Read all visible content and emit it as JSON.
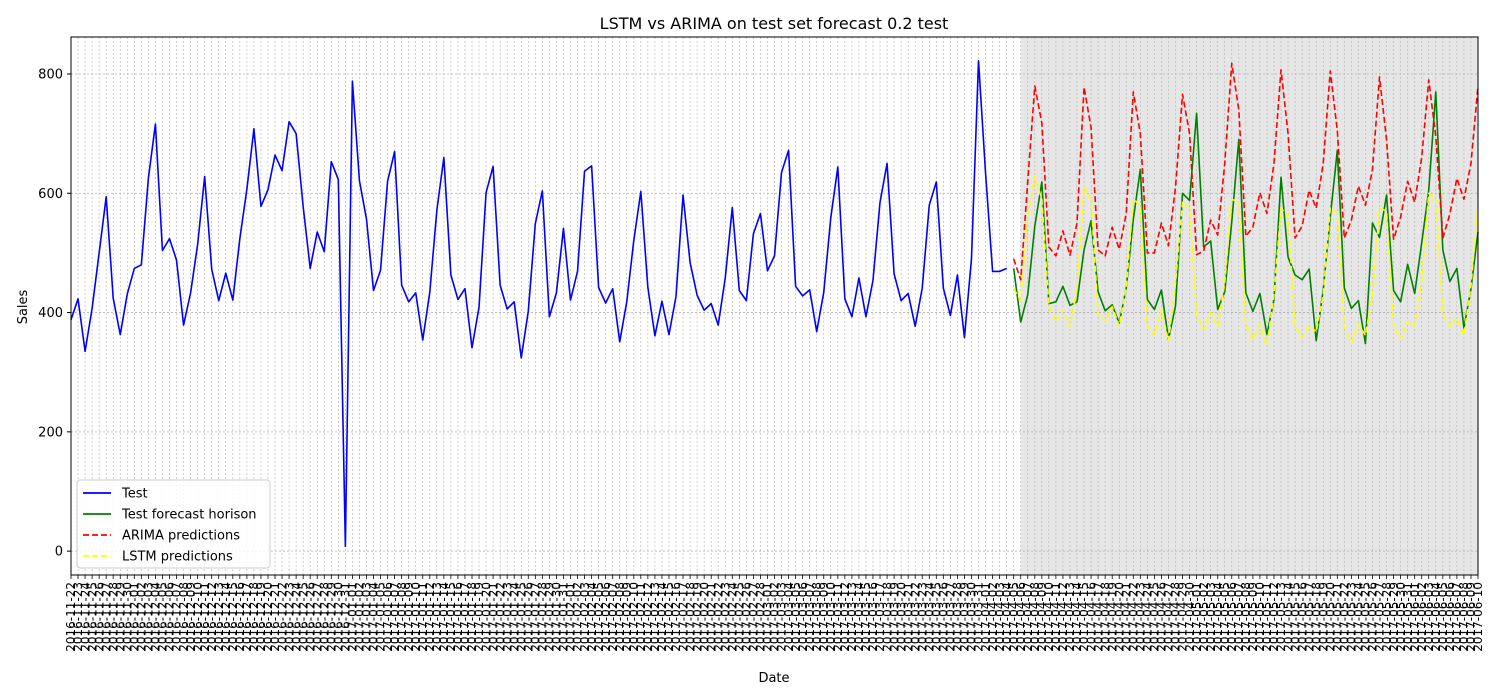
{
  "chart_data": {
    "type": "line",
    "title": "LSTM vs ARIMA on test set forecast 0.2 test",
    "xlabel": "Date",
    "ylabel": "Sales",
    "ylim": [
      -40,
      862
    ],
    "yticks": [
      0,
      200,
      400,
      600,
      800
    ],
    "grid": true,
    "legend_position": "lower-left",
    "x_start": "2016-11-22",
    "x_end": "2017-06-10",
    "shaded_region": {
      "from": "2017-04-06",
      "to": "2017-06-10",
      "color": "#e6e6e6"
    },
    "series": [
      {
        "name": "Test",
        "color": "#0000ff",
        "style": "solid",
        "start": "2016-11-22",
        "values": [
          388,
          423,
          335,
          407,
          500,
          594,
          424,
          363,
          431,
          474,
          480,
          625,
          716,
          504,
          524,
          488,
          379,
          433,
          514,
          628,
          473,
          420,
          466,
          421,
          524,
          607,
          708,
          578,
          606,
          664,
          638,
          720,
          700,
          578,
          474,
          535,
          502,
          653,
          623,
          8,
          788,
          621,
          557,
          437,
          471,
          620,
          670,
          446,
          418,
          433,
          354,
          434,
          571,
          660,
          463,
          422,
          440,
          341,
          409,
          601,
          645,
          446,
          406,
          418,
          324,
          402,
          549,
          604,
          393,
          433,
          541,
          421,
          469,
          637,
          646,
          442,
          416,
          440,
          351,
          418,
          521,
          603,
          442,
          361,
          419,
          363,
          427,
          597,
          484,
          429,
          404,
          415,
          379,
          458,
          576,
          437,
          420,
          532,
          566,
          470,
          495,
          635,
          672,
          444,
          428,
          438,
          368,
          434,
          559,
          644,
          423,
          393,
          458,
          393,
          454,
          585,
          650,
          465,
          420,
          432,
          377,
          441,
          580,
          619,
          441,
          395,
          463,
          358,
          490,
          822,
          634,
          469,
          469,
          474
        ]
      },
      {
        "name": "Test forecast horison",
        "color": "#008000",
        "style": "solid",
        "start": "2017-04-05",
        "values": [
          474,
          384,
          430,
          545,
          619,
          415,
          418,
          444,
          412,
          418,
          505,
          554,
          435,
          403,
          413,
          382,
          441,
          556,
          640,
          422,
          405,
          438,
          355,
          411,
          600,
          588,
          734,
          510,
          520,
          405,
          435,
          552,
          690,
          433,
          402,
          432,
          363,
          422,
          627,
          493,
          463,
          455,
          473,
          353,
          438,
          560,
          672,
          441,
          407,
          420,
          348,
          550,
          526,
          597,
          437,
          418,
          481,
          432,
          517,
          605,
          770,
          505,
          452,
          474,
          374,
          440,
          535
        ]
      },
      {
        "name": "ARIMA predictions",
        "color": "#ff0000",
        "style": "dashed",
        "start": "2017-04-05",
        "values": [
          490,
          455,
          620,
          780,
          718,
          510,
          495,
          537,
          496,
          550,
          778,
          710,
          505,
          495,
          543,
          506,
          566,
          770,
          700,
          500,
          500,
          550,
          512,
          610,
          766,
          700,
          497,
          503,
          555,
          530,
          650,
          818,
          740,
          528,
          543,
          601,
          566,
          650,
          807,
          700,
          525,
          545,
          605,
          575,
          650,
          805,
          705,
          525,
          555,
          612,
          580,
          640,
          795,
          690,
          523,
          560,
          620,
          585,
          660,
          790,
          695,
          525,
          565,
          625,
          590,
          650,
          780
        ]
      },
      {
        "name": "LSTM predictions",
        "color": "#ffff00",
        "style": "dashed",
        "start": "2017-04-05",
        "values": [
          440,
          420,
          560,
          628,
          590,
          412,
          385,
          405,
          376,
          440,
          610,
          590,
          398,
          385,
          410,
          378,
          442,
          590,
          580,
          378,
          362,
          405,
          352,
          450,
          585,
          575,
          395,
          372,
          400,
          376,
          450,
          590,
          585,
          378,
          355,
          380,
          345,
          430,
          575,
          563,
          376,
          358,
          378,
          368,
          430,
          575,
          568,
          375,
          350,
          380,
          362,
          430,
          575,
          570,
          378,
          355,
          385,
          378,
          450,
          600,
          590,
          398,
          376,
          390,
          362,
          445,
          580
        ]
      }
    ]
  }
}
